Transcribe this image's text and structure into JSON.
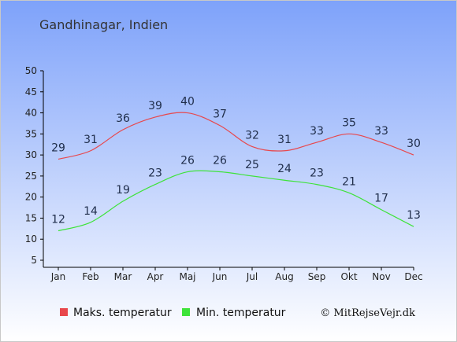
{
  "chart_data": {
    "type": "line",
    "title": "Gandhinagar, Indien",
    "categories": [
      "Jan",
      "Feb",
      "Mar",
      "Apr",
      "Maj",
      "Jun",
      "Jul",
      "Aug",
      "Sep",
      "Okt",
      "Nov",
      "Dec"
    ],
    "series": [
      {
        "name": "Maks. temperatur",
        "color": "#e8474c",
        "values": [
          29,
          31,
          36,
          39,
          40,
          37,
          32,
          31,
          33,
          35,
          33,
          30
        ]
      },
      {
        "name": "Min. temperatur",
        "color": "#3ee33a",
        "values": [
          12,
          14,
          19,
          23,
          26,
          26,
          25,
          24,
          23,
          21,
          17,
          13
        ]
      }
    ],
    "ylim": [
      5,
      50
    ],
    "yticks": [
      5,
      10,
      15,
      20,
      25,
      30,
      35,
      40,
      45,
      50
    ],
    "grid": false,
    "legend_position": "bottom"
  },
  "credit": "© MitRejseVejr.dk",
  "colors": {
    "bg_top": "#7ea2fa",
    "bg_bottom": "#ffffff",
    "frame": "#c8c8c8"
  }
}
